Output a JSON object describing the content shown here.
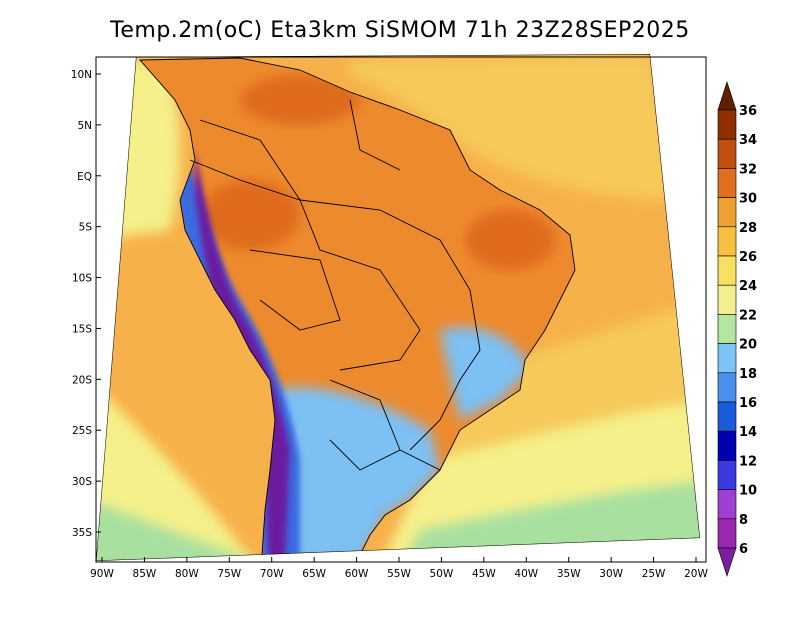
{
  "title": "Temp.2m(oC) Eta3km SiSMOM 71h 23Z28SEP2025",
  "lat_ticks": [
    "10N",
    "5N",
    "EQ",
    "5S",
    "10S",
    "15S",
    "20S",
    "25S",
    "30S",
    "35S"
  ],
  "lon_ticks": [
    "90W",
    "85W",
    "80W",
    "75W",
    "70W",
    "65W",
    "60W",
    "55W",
    "50W",
    "45W",
    "40W",
    "35W",
    "30W",
    "25W",
    "20W"
  ],
  "colorbar": {
    "levels": [
      "6",
      "8",
      "10",
      "12",
      "14",
      "16",
      "18",
      "20",
      "22",
      "24",
      "26",
      "28",
      "30",
      "32",
      "34",
      "36"
    ],
    "colors": [
      "#7b1fa2",
      "#9c27b0",
      "#a040d0",
      "#3a3ae0",
      "#0000b0",
      "#1a5adc",
      "#4a90f0",
      "#7cc4f8",
      "#b4e6a0",
      "#f0f090",
      "#f8e060",
      "#f8c040",
      "#f0a030",
      "#e07020",
      "#c05010",
      "#903000",
      "#602000"
    ]
  },
  "field_colors": {
    "ocean_warm": "#f7b14a",
    "ocean_mid": "#f6c95a",
    "ocean_cool": "#f5f08a",
    "ocean_cold": "#a8e0a0",
    "land_hot": "#ee8a2e",
    "land_hotter": "#df6a1e",
    "andes_cold": "#6a1fa0",
    "andes_mid": "#3a6ae0",
    "south_cool": "#7cc0f4"
  }
}
